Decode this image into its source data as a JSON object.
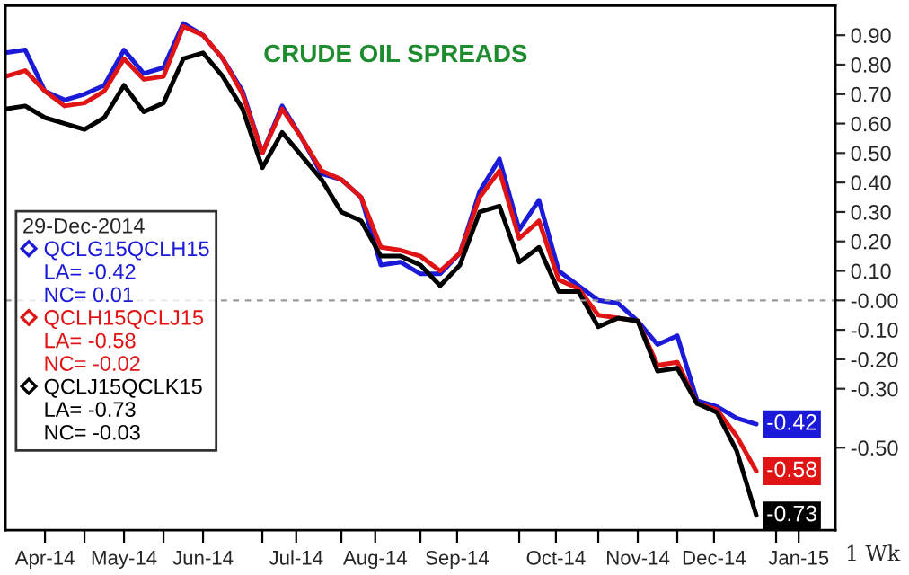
{
  "chart_data": {
    "type": "line",
    "title": "CRUDE OIL SPREADS",
    "legend_title": "29-Dec-2014",
    "x": [
      "2014-04-07",
      "2014-04-14",
      "2014-04-21",
      "2014-04-28",
      "2014-05-05",
      "2014-05-12",
      "2014-05-19",
      "2014-05-26",
      "2014-06-02",
      "2014-06-09",
      "2014-06-16",
      "2014-06-23",
      "2014-06-30",
      "2014-07-07",
      "2014-07-14",
      "2014-07-21",
      "2014-07-28",
      "2014-08-04",
      "2014-08-11",
      "2014-08-18",
      "2014-08-25",
      "2014-09-01",
      "2014-09-08",
      "2014-09-15",
      "2014-09-22",
      "2014-09-29",
      "2014-10-06",
      "2014-10-13",
      "2014-10-20",
      "2014-10-27",
      "2014-11-03",
      "2014-11-10",
      "2014-11-17",
      "2014-11-24",
      "2014-12-01",
      "2014-12-08",
      "2014-12-15",
      "2014-12-22",
      "2014-12-29"
    ],
    "series": [
      {
        "name": "QCLG15QCLH15",
        "color": "#1a1ad8",
        "values": [
          0.84,
          0.85,
          0.71,
          0.68,
          0.7,
          0.73,
          0.85,
          0.77,
          0.79,
          0.94,
          0.9,
          0.82,
          0.71,
          0.5,
          0.66,
          0.55,
          0.43,
          0.41,
          0.35,
          0.12,
          0.13,
          0.09,
          0.09,
          0.16,
          0.37,
          0.48,
          0.24,
          0.34,
          0.1,
          0.05,
          0.0,
          -0.01,
          -0.07,
          -0.15,
          -0.12,
          -0.34,
          -0.36,
          -0.4,
          -0.42
        ],
        "value_labels": [
          null,
          null,
          null,
          null,
          null,
          null,
          null,
          null,
          null,
          null,
          null,
          null,
          null,
          null,
          null,
          null,
          null,
          null,
          null,
          null,
          null,
          null,
          null,
          null,
          null,
          null,
          null,
          null,
          null,
          null,
          null,
          null,
          null,
          null,
          null,
          null,
          null,
          null,
          "-0.42"
        ]
      },
      {
        "name": "QCLH15QCLJ15",
        "color": "#e01414",
        "values": [
          0.76,
          0.78,
          0.71,
          0.66,
          0.67,
          0.71,
          0.82,
          0.75,
          0.76,
          0.93,
          0.9,
          0.82,
          0.7,
          0.5,
          0.65,
          0.55,
          0.44,
          0.41,
          0.35,
          0.18,
          0.17,
          0.15,
          0.1,
          0.16,
          0.35,
          0.44,
          0.21,
          0.27,
          0.07,
          0.04,
          -0.05,
          -0.06,
          -0.07,
          -0.22,
          -0.21,
          -0.35,
          -0.37,
          -0.46,
          -0.58
        ],
        "value_labels": [
          null,
          null,
          null,
          null,
          null,
          null,
          null,
          null,
          null,
          null,
          null,
          null,
          null,
          null,
          null,
          null,
          null,
          null,
          null,
          null,
          null,
          null,
          null,
          null,
          null,
          null,
          null,
          null,
          null,
          null,
          null,
          null,
          null,
          null,
          null,
          null,
          null,
          null,
          "-0.58"
        ]
      },
      {
        "name": "QCLJ15QCLK15",
        "color": "#000000",
        "values": [
          0.65,
          0.66,
          0.62,
          0.6,
          0.58,
          0.62,
          0.73,
          0.64,
          0.67,
          0.82,
          0.84,
          0.76,
          0.65,
          0.45,
          0.57,
          0.49,
          0.41,
          0.3,
          0.27,
          0.15,
          0.15,
          0.12,
          0.05,
          0.12,
          0.3,
          0.32,
          0.13,
          0.18,
          0.03,
          0.03,
          -0.09,
          -0.06,
          -0.07,
          -0.24,
          -0.23,
          -0.35,
          -0.38,
          -0.51,
          -0.73
        ],
        "value_labels": [
          null,
          null,
          null,
          null,
          null,
          null,
          null,
          null,
          null,
          null,
          null,
          null,
          null,
          null,
          null,
          null,
          null,
          null,
          null,
          null,
          null,
          null,
          null,
          null,
          null,
          null,
          null,
          null,
          null,
          null,
          null,
          null,
          null,
          null,
          null,
          null,
          null,
          null,
          "-0.73"
        ]
      }
    ],
    "annotations": [
      "LA= -0.42",
      "NC= 0.01",
      "LA= -0.58",
      "NC= -0.02",
      "LA= -0.73",
      "NC= -0.03",
      "1 Wk"
    ],
    "xlim": [
      "2014-04-07",
      "2015-01-26"
    ],
    "xticks": [
      {
        "value": "2014-04-21",
        "label": "Apr-14"
      },
      {
        "value": "2014-05-05",
        "label": null
      },
      {
        "value": "2014-05-19",
        "label": "May-14"
      },
      {
        "value": "2014-06-02",
        "label": null
      },
      {
        "value": "2014-06-16",
        "label": "Jun-14"
      },
      {
        "value": "2014-07-07",
        "label": null
      },
      {
        "value": "2014-07-19",
        "label": "Jul-14"
      },
      {
        "value": "2014-08-04",
        "label": null
      },
      {
        "value": "2014-08-16",
        "label": "Aug-14"
      },
      {
        "value": "2014-09-01",
        "label": null
      },
      {
        "value": "2014-09-14",
        "label": "Sep-14"
      },
      {
        "value": "2014-10-06",
        "label": null
      },
      {
        "value": "2014-10-19",
        "label": "Oct-14"
      },
      {
        "value": "2014-11-03",
        "label": null
      },
      {
        "value": "2014-11-17",
        "label": "Nov-14"
      },
      {
        "value": "2014-12-01",
        "label": null
      },
      {
        "value": "2014-12-14",
        "label": "Dec-14"
      },
      {
        "value": "2015-01-05",
        "label": null
      },
      {
        "value": "2015-01-13",
        "label": "Jan-15"
      }
    ],
    "ylim": [
      -0.78,
      1.0
    ],
    "yticks": [
      {
        "value": 0.9,
        "label": "0.90"
      },
      {
        "value": 0.8,
        "label": "0.80"
      },
      {
        "value": 0.7,
        "label": "0.70"
      },
      {
        "value": 0.6,
        "label": "0.60"
      },
      {
        "value": 0.5,
        "label": "0.50"
      },
      {
        "value": 0.4,
        "label": "0.40"
      },
      {
        "value": 0.3,
        "label": "0.30"
      },
      {
        "value": 0.2,
        "label": "0.20"
      },
      {
        "value": 0.1,
        "label": "0.10"
      },
      {
        "value": 0,
        "label": "-0.00"
      },
      {
        "value": -0.1,
        "label": "-0.10"
      },
      {
        "value": -0.2,
        "label": "-0.20"
      },
      {
        "value": -0.3,
        "label": "-0.30"
      },
      {
        "value": -0.5,
        "label": "-0.50"
      }
    ],
    "ref_lines": [
      {
        "axis": "y",
        "value": 0,
        "color": "#999999",
        "line_style": "dashed"
      }
    ],
    "legend": "left",
    "grid": false
  }
}
